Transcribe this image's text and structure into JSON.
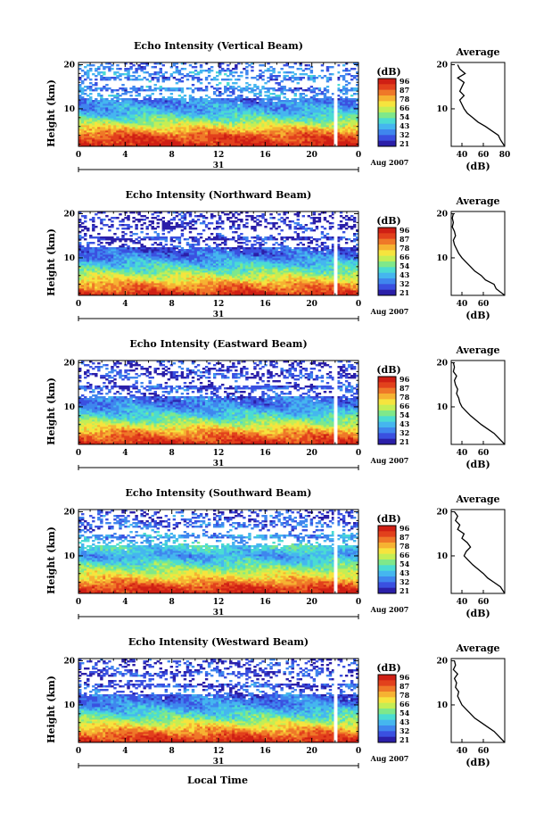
{
  "page": {
    "x_axis_title": "Local Time",
    "date_label": "Aug 2007",
    "day_label": "31"
  },
  "colorbar": {
    "unit_label": "(dB)",
    "tick_labels": [
      "96",
      "87",
      "78",
      "66",
      "54",
      "43",
      "32",
      "21"
    ]
  },
  "colors": {
    "scale": [
      "#2b1fa8",
      "#3a50e0",
      "#3f86ee",
      "#45b6ef",
      "#4bdcd2",
      "#7fe88a",
      "#c4ee55",
      "#f6e43e",
      "#f6b232",
      "#ef7828",
      "#e2411c",
      "#cf1f14"
    ],
    "white_gap": "#ffffff"
  },
  "chart_data": [
    {
      "type": "heatmap",
      "title": "Echo Intensity (Vertical Beam)",
      "ylabel": "Height (km)",
      "x_ticks": [
        "0",
        "4",
        "8",
        "12",
        "16",
        "20",
        "0"
      ],
      "y_ticks": [
        "20",
        "10"
      ],
      "xlim": [
        0,
        24
      ],
      "ylim": [
        1.5,
        20.5
      ],
      "data_gap_hours": [
        21.9,
        22.2
      ],
      "profile": {
        "title": "Average",
        "xlabel": "(dB)",
        "x_ticks": [
          "40",
          "60",
          "80"
        ],
        "xlim": [
          30,
          80
        ],
        "height_km": [
          1.5,
          3,
          4,
          5,
          6,
          7,
          8,
          9,
          10,
          11,
          12,
          13,
          14,
          15,
          16,
          17,
          18,
          19,
          20
        ],
        "db": [
          80,
          76,
          74,
          68,
          62,
          55,
          50,
          45,
          42,
          40,
          38,
          42,
          38,
          40,
          42,
          36,
          43,
          38,
          36
        ]
      }
    },
    {
      "type": "heatmap",
      "title": "Echo Intensity (Northward Beam)",
      "ylabel": "Height (km)",
      "x_ticks": [
        "0",
        "4",
        "8",
        "12",
        "16",
        "20",
        "0"
      ],
      "y_ticks": [
        "20",
        "10"
      ],
      "xlim": [
        0,
        24
      ],
      "ylim": [
        1.5,
        20.5
      ],
      "data_gap_hours": [
        21.9,
        22.2
      ],
      "profile": {
        "title": "Average",
        "xlabel": "(dB)",
        "x_ticks": [
          "40",
          "60"
        ],
        "xlim": [
          30,
          80
        ],
        "height_km": [
          1.5,
          3,
          4,
          5,
          6,
          7,
          8,
          9,
          10,
          11,
          12,
          13,
          14,
          15,
          16,
          17,
          18,
          19,
          20
        ],
        "db": [
          80,
          72,
          70,
          62,
          58,
          52,
          48,
          44,
          40,
          37,
          35,
          33,
          32,
          34,
          33,
          31,
          32,
          31,
          32
        ]
      }
    },
    {
      "type": "heatmap",
      "title": "Echo Intensity (Eastward Beam)",
      "ylabel": "Height (km)",
      "x_ticks": [
        "0",
        "4",
        "8",
        "12",
        "16",
        "20",
        "0"
      ],
      "y_ticks": [
        "20",
        "10"
      ],
      "xlim": [
        0,
        24
      ],
      "ylim": [
        1.5,
        20.5
      ],
      "data_gap_hours": [
        21.9,
        22.2
      ],
      "profile": {
        "title": "Average",
        "xlabel": "(dB)",
        "x_ticks": [
          "40",
          "60"
        ],
        "xlim": [
          30,
          80
        ],
        "height_km": [
          1.5,
          3,
          4,
          5,
          6,
          7,
          8,
          9,
          10,
          11,
          12,
          13,
          14,
          15,
          16,
          17,
          18,
          19,
          20
        ],
        "db": [
          80,
          74,
          70,
          64,
          58,
          53,
          48,
          44,
          40,
          38,
          37,
          35,
          36,
          34,
          33,
          35,
          32,
          33,
          32
        ]
      }
    },
    {
      "type": "heatmap",
      "title": "Echo Intensity (Southward Beam)",
      "ylabel": "Height (km)",
      "x_ticks": [
        "0",
        "4",
        "8",
        "12",
        "16",
        "20",
        "0"
      ],
      "y_ticks": [
        "20",
        "10"
      ],
      "xlim": [
        0,
        24
      ],
      "ylim": [
        1.5,
        20.5
      ],
      "data_gap_hours": [
        21.9,
        22.2
      ],
      "profile": {
        "title": "Average",
        "xlabel": "(dB)",
        "x_ticks": [
          "40",
          "60"
        ],
        "xlim": [
          30,
          80
        ],
        "height_km": [
          1.5,
          3,
          4,
          5,
          6,
          7,
          8,
          9,
          10,
          11,
          12,
          13,
          14,
          15,
          16,
          17,
          18,
          19,
          20
        ],
        "db": [
          80,
          76,
          70,
          64,
          60,
          55,
          50,
          46,
          42,
          44,
          48,
          45,
          40,
          42,
          36,
          38,
          34,
          36,
          33
        ]
      }
    },
    {
      "type": "heatmap",
      "title": "Echo Intensity (Westward Beam)",
      "ylabel": "Height (km)",
      "x_ticks": [
        "0",
        "4",
        "8",
        "12",
        "16",
        "20",
        "0"
      ],
      "y_ticks": [
        "20",
        "10"
      ],
      "xlim": [
        0,
        24
      ],
      "ylim": [
        1.5,
        20.5
      ],
      "data_gap_hours": [
        21.9,
        22.2
      ],
      "profile": {
        "title": "Average",
        "xlabel": "(dB)",
        "x_ticks": [
          "40",
          "60"
        ],
        "xlim": [
          30,
          80
        ],
        "height_km": [
          1.5,
          3,
          4,
          5,
          6,
          7,
          8,
          9,
          10,
          11,
          12,
          13,
          14,
          15,
          16,
          17,
          18,
          19,
          20
        ],
        "db": [
          80,
          74,
          70,
          64,
          58,
          52,
          48,
          44,
          40,
          38,
          36,
          37,
          34,
          35,
          33,
          36,
          32,
          34,
          33
        ]
      }
    }
  ]
}
